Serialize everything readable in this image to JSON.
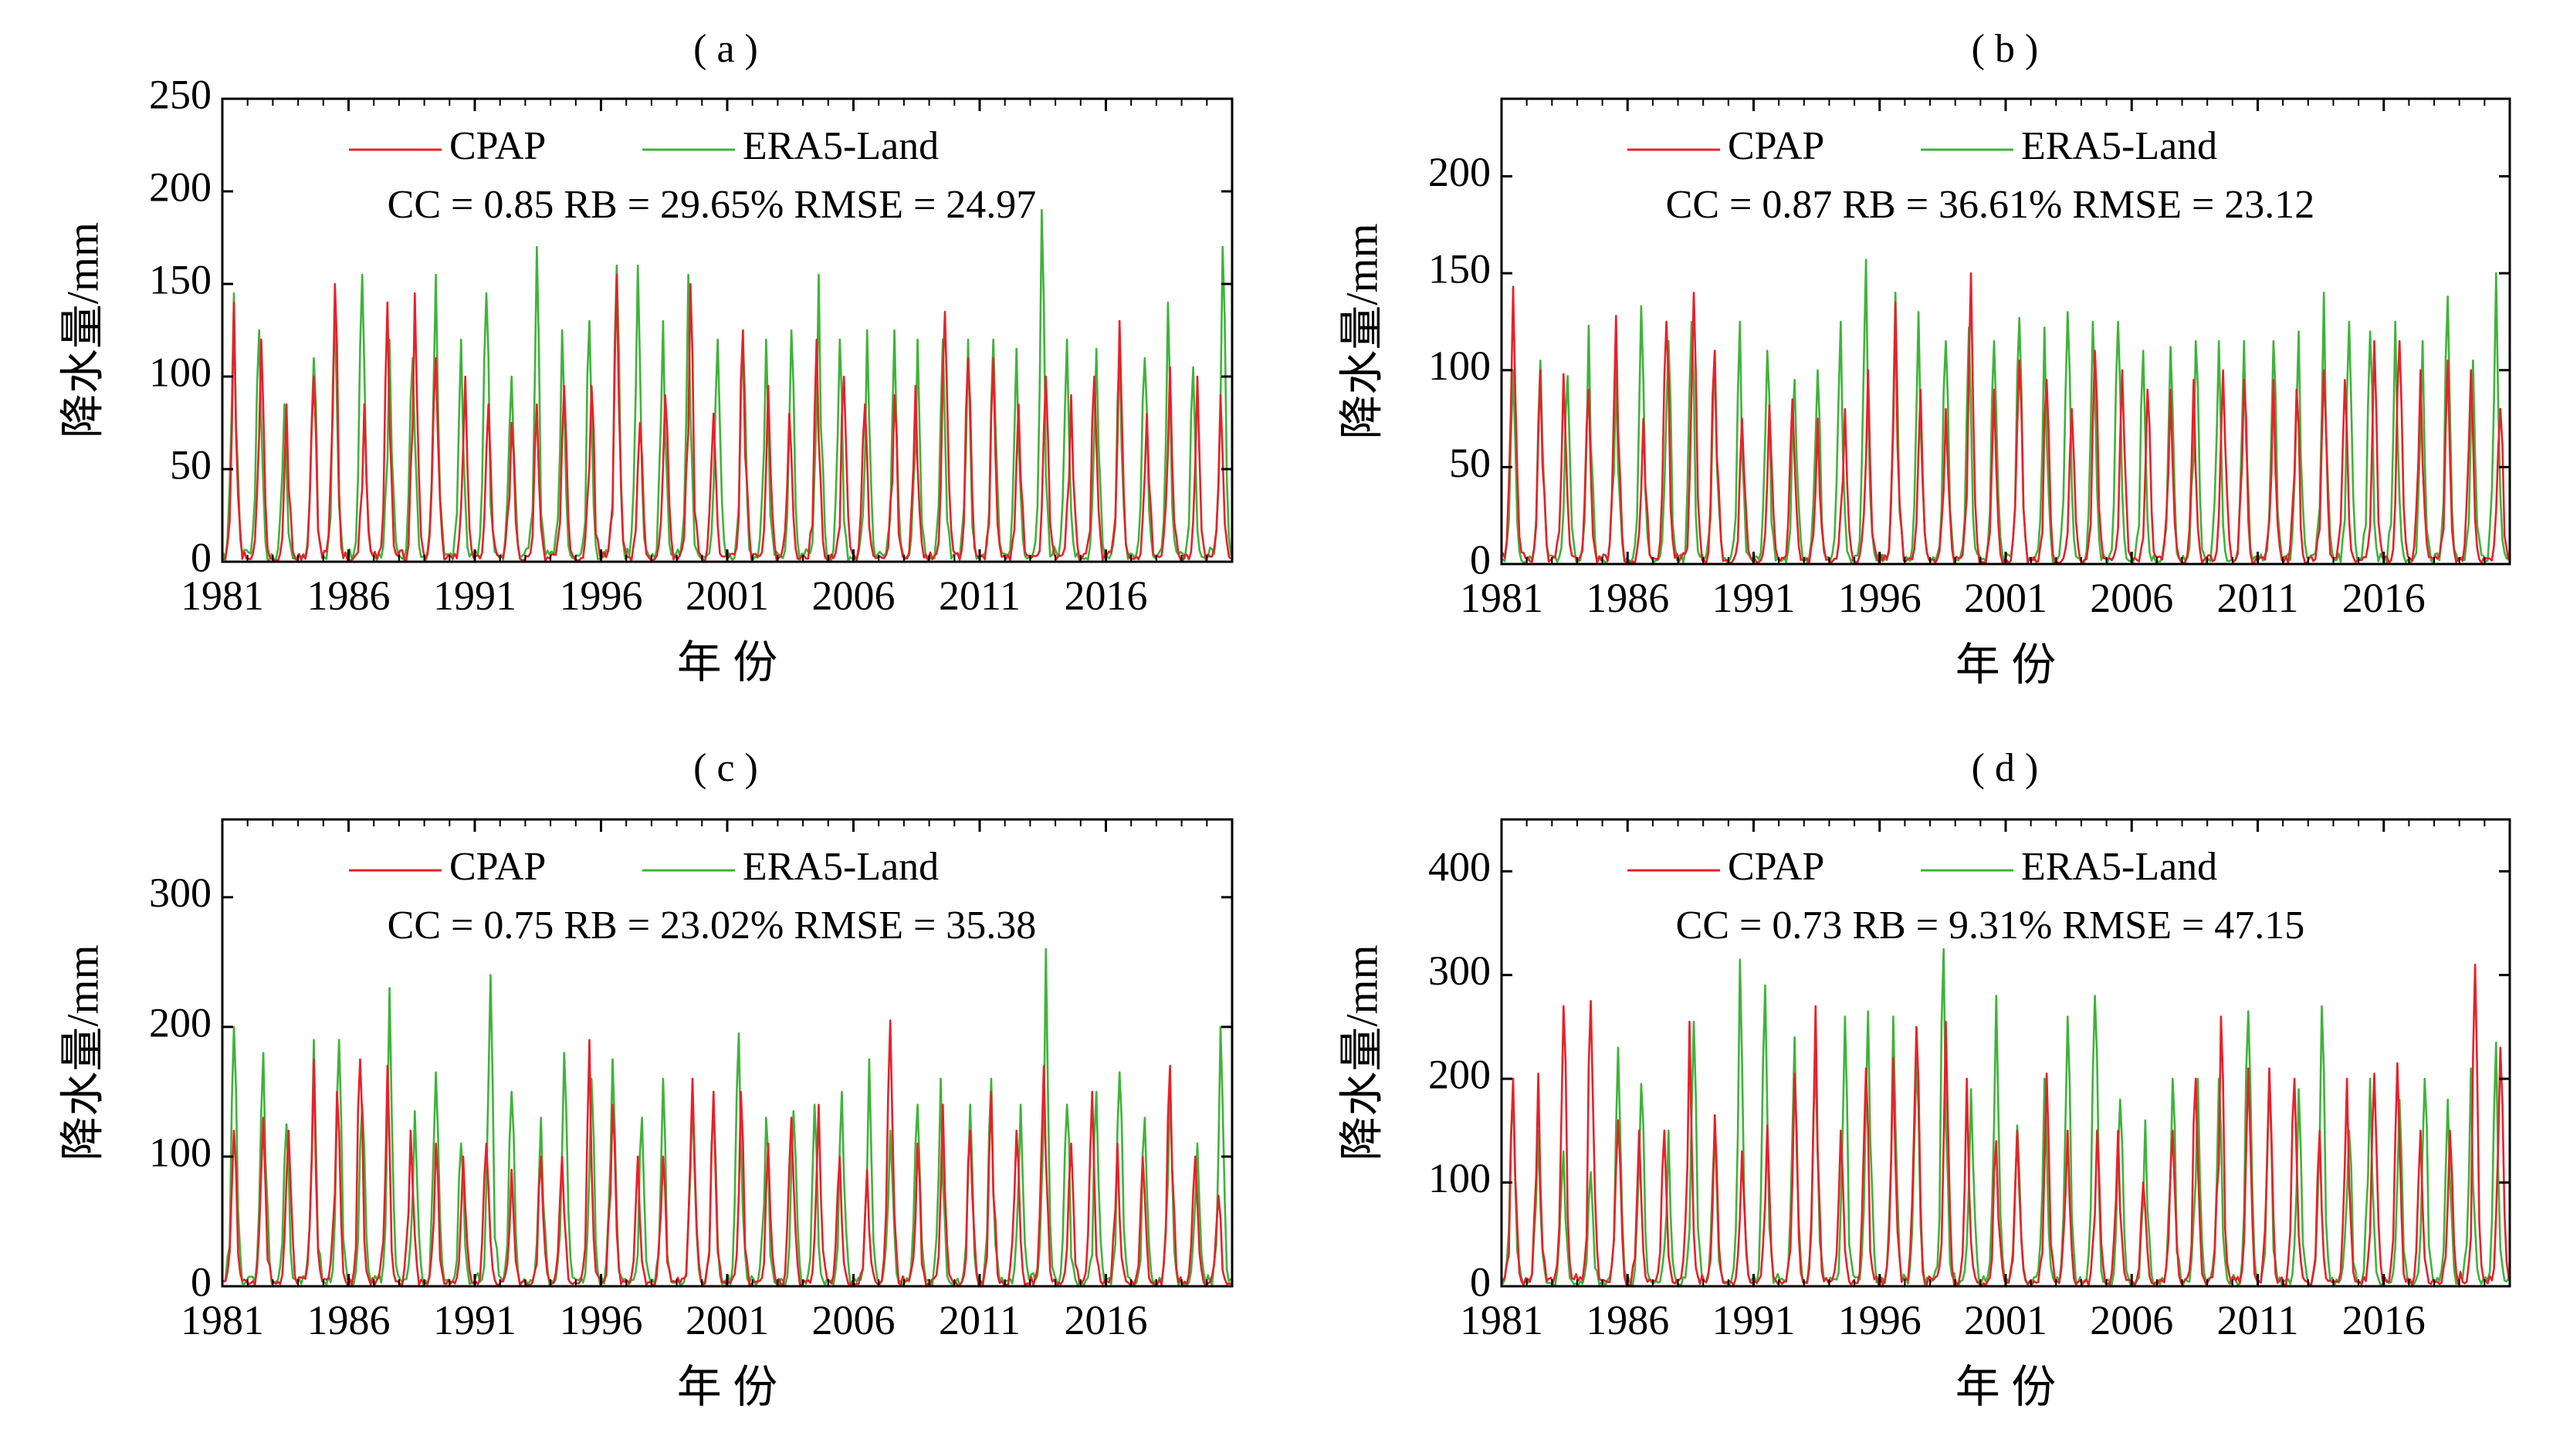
{
  "colors": {
    "cpap": "#e8202a",
    "era5": "#3fb33a",
    "axis": "#000000"
  },
  "chart_data": [
    {
      "type": "line",
      "panel_label": "( a )",
      "ylabel": "降水量/mm",
      "xlabel": "年  份",
      "ylim": [
        0,
        250
      ],
      "yticks": [
        0,
        50,
        100,
        150,
        200,
        250
      ],
      "xlim": [
        1981,
        2021
      ],
      "xticks": [
        1981,
        1986,
        1991,
        1996,
        2001,
        2006,
        2011,
        2016
      ],
      "legend": {
        "placement": "top-center",
        "entries": [
          "CPAP",
          "ERA5-Land"
        ]
      },
      "stats": "CC = 0.85   RB = 29.65%   RMSE = 24.97",
      "series": [
        {
          "name": "CPAP",
          "color_key": "cpap",
          "annual_peak": [
            140,
            120,
            85,
            100,
            150,
            85,
            140,
            145,
            110,
            100,
            85,
            75,
            85,
            95,
            95,
            155,
            75,
            90,
            150,
            80,
            125,
            95,
            80,
            120,
            100,
            85,
            90,
            95,
            135,
            110,
            110,
            85,
            100,
            90,
            100,
            130,
            80,
            105,
            100,
            90
          ]
        },
        {
          "name": "ERA5-Land",
          "color_key": "era5",
          "annual_peak": [
            145,
            125,
            85,
            110,
            135,
            155,
            120,
            110,
            155,
            120,
            145,
            100,
            170,
            125,
            130,
            160,
            160,
            130,
            155,
            120,
            120,
            120,
            125,
            155,
            120,
            125,
            125,
            120,
            120,
            120,
            120,
            115,
            190,
            120,
            115,
            115,
            110,
            140,
            105,
            170
          ]
        }
      ]
    },
    {
      "type": "line",
      "panel_label": "( b )",
      "ylabel": "降水量/mm",
      "xlabel": "年  份",
      "ylim": [
        0,
        240
      ],
      "yticks": [
        0,
        50,
        100,
        150,
        200
      ],
      "xlim": [
        1981,
        2021
      ],
      "xticks": [
        1981,
        1986,
        1991,
        1996,
        2001,
        2006,
        2011,
        2016
      ],
      "legend": {
        "placement": "top-center",
        "entries": [
          "CPAP",
          "ERA5-Land"
        ]
      },
      "stats": "CC = 0.87   RB = 36.61%   RMSE = 23.12",
      "series": [
        {
          "name": "CPAP",
          "color_key": "cpap",
          "annual_peak": [
            143,
            100,
            98,
            90,
            128,
            75,
            125,
            140,
            110,
            75,
            82,
            85,
            75,
            80,
            100,
            135,
            90,
            80,
            150,
            90,
            105,
            95,
            80,
            110,
            100,
            90,
            90,
            95,
            100,
            95,
            95,
            90,
            100,
            95,
            115,
            115,
            100,
            105,
            100,
            80
          ]
        },
        {
          "name": "ERA5-Land",
          "color_key": "era5",
          "annual_peak": [
            100,
            105,
            97,
            123,
            100,
            133,
            115,
            125,
            110,
            125,
            110,
            95,
            100,
            125,
            157,
            140,
            130,
            115,
            122,
            115,
            127,
            122,
            130,
            125,
            125,
            110,
            112,
            115,
            115,
            115,
            115,
            120,
            140,
            125,
            120,
            125,
            115,
            138,
            105,
            150
          ]
        }
      ]
    },
    {
      "type": "line",
      "panel_label": "( c )",
      "ylabel": "降水量/mm",
      "xlabel": "年  份",
      "ylim": [
        0,
        360
      ],
      "yticks": [
        0,
        100,
        200,
        300
      ],
      "xlim": [
        1981,
        2021
      ],
      "xticks": [
        1981,
        1986,
        1991,
        1996,
        2001,
        2006,
        2011,
        2016
      ],
      "legend": {
        "placement": "top-center",
        "entries": [
          "CPAP",
          "ERA5-Land"
        ]
      },
      "stats": "CC = 0.75   RB = 23.02%   RMSE = 35.38",
      "series": [
        {
          "name": "CPAP",
          "color_key": "cpap",
          "annual_peak": [
            120,
            130,
            120,
            175,
            150,
            175,
            170,
            120,
            110,
            100,
            110,
            90,
            100,
            100,
            190,
            140,
            100,
            100,
            160,
            150,
            150,
            110,
            130,
            140,
            100,
            90,
            205,
            110,
            140,
            120,
            150,
            120,
            170,
            110,
            150,
            110,
            100,
            170,
            100,
            70
          ]
        },
        {
          "name": "ERA5-Land",
          "color_key": "era5",
          "annual_peak": [
            200,
            180,
            125,
            190,
            190,
            140,
            230,
            135,
            165,
            110,
            240,
            150,
            130,
            180,
            160,
            175,
            130,
            160,
            150,
            140,
            195,
            130,
            135,
            140,
            150,
            175,
            120,
            140,
            160,
            140,
            160,
            140,
            260,
            140,
            150,
            165,
            130,
            155,
            110,
            200
          ]
        }
      ]
    },
    {
      "type": "line",
      "panel_label": "( d )",
      "ylabel": "降水量/mm",
      "xlabel": "年  份",
      "ylim": [
        0,
        450
      ],
      "yticks": [
        0,
        100,
        200,
        300,
        400
      ],
      "xlim": [
        1981,
        2021
      ],
      "xticks": [
        1981,
        1986,
        1991,
        1996,
        2001,
        2006,
        2011,
        2016
      ],
      "legend": {
        "placement": "top-center",
        "entries": [
          "CPAP",
          "ERA5-Land"
        ]
      },
      "stats": "CC = 0.73   RB = 9.31%   RMSE = 47.15",
      "series": [
        {
          "name": "CPAP",
          "color_key": "cpap",
          "annual_peak": [
            200,
            205,
            270,
            275,
            160,
            150,
            150,
            255,
            165,
            130,
            155,
            205,
            270,
            150,
            210,
            220,
            250,
            255,
            200,
            140,
            150,
            205,
            150,
            150,
            150,
            100,
            150,
            200,
            260,
            210,
            210,
            200,
            150,
            200,
            205,
            215,
            150,
            150,
            310,
            230
          ]
        },
        {
          "name": "ERA5-Land",
          "color_key": "era5",
          "annual_peak": [
            190,
            150,
            130,
            110,
            230,
            195,
            150,
            255,
            150,
            315,
            290,
            240,
            210,
            260,
            265,
            260,
            215,
            325,
            190,
            280,
            155,
            200,
            260,
            280,
            180,
            160,
            200,
            200,
            200,
            265,
            200,
            190,
            270,
            150,
            200,
            180,
            200,
            180,
            210,
            235
          ]
        }
      ]
    }
  ]
}
